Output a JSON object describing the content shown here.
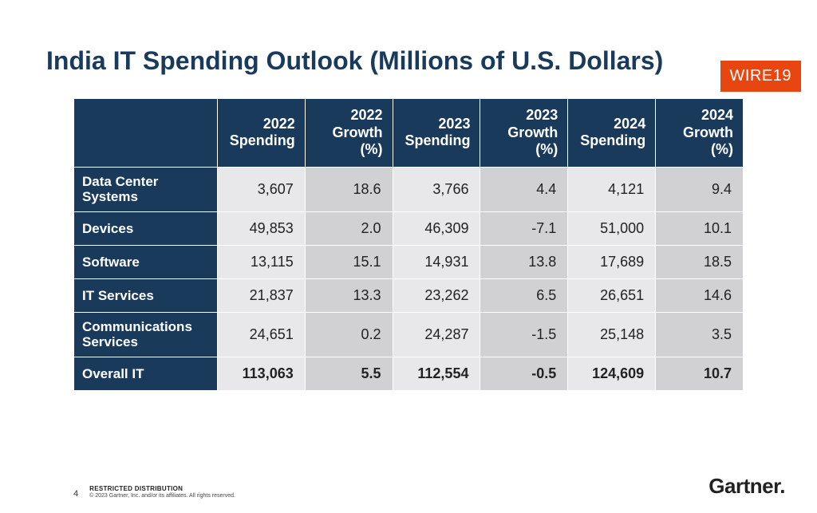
{
  "badge": {
    "text": "WIRE19",
    "bg": "#e84610",
    "fg": "#ffffff"
  },
  "title": "India IT Spending Outlook (Millions of U.S. Dollars)",
  "table": {
    "header_bg": "#1a3a5c",
    "header_fg": "#ffffff",
    "cell_bg_odd": "#e8e8ea",
    "cell_bg_even": "#d1d1d4",
    "columns": [
      "2022 Spending",
      "2022 Growth (%)",
      "2023 Spending",
      "2023 Growth (%)",
      "2024 Spending",
      "2024 Growth (%)"
    ],
    "rows": [
      {
        "label": "Data Center Systems",
        "values": [
          "3,607",
          "18.6",
          "3,766",
          "4.4",
          "4,121",
          "9.4"
        ],
        "bold": false
      },
      {
        "label": "Devices",
        "values": [
          "49,853",
          "2.0",
          "46,309",
          "-7.1",
          "51,000",
          "10.1"
        ],
        "bold": false
      },
      {
        "label": "Software",
        "values": [
          "13,115",
          "15.1",
          "14,931",
          "13.8",
          "17,689",
          "18.5"
        ],
        "bold": false
      },
      {
        "label": "IT Services",
        "values": [
          "21,837",
          "13.3",
          "23,262",
          "6.5",
          "26,651",
          "14.6"
        ],
        "bold": false
      },
      {
        "label": "Communications Services",
        "values": [
          "24,651",
          "0.2",
          "24,287",
          "-1.5",
          "25,148",
          "3.5"
        ],
        "bold": false
      },
      {
        "label": "Overall IT",
        "values": [
          "113,063",
          "5.5",
          "112,554",
          "-0.5",
          "124,609",
          "10.7"
        ],
        "bold": true
      }
    ]
  },
  "footer": {
    "page": "4",
    "restricted": "RESTRICTED DISTRIBUTION",
    "copyright": "© 2023 Gartner, Inc. and/or its affiliates. All rights reserved.",
    "brand": "Gartner"
  }
}
